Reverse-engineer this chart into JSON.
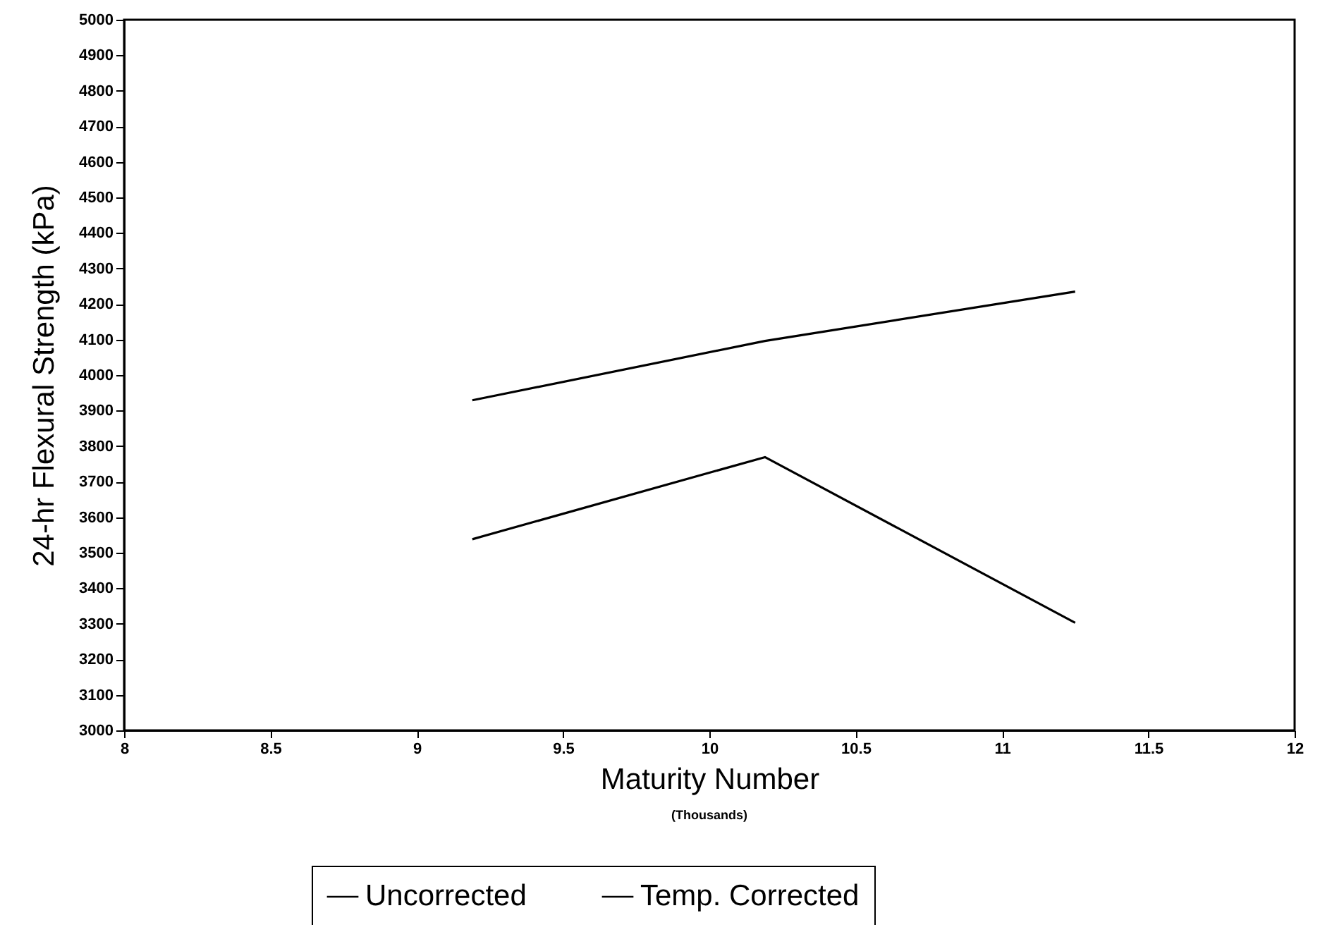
{
  "chart_data": {
    "type": "line",
    "xlabel": "Maturity Number",
    "ylabel": "24-hr Flexural Strength (kPa)",
    "annotations": [
      "(Thousands)"
    ],
    "xlim": [
      8,
      12
    ],
    "xticks": [
      8,
      8.5,
      9,
      9.5,
      10,
      10.5,
      11,
      11.5,
      12
    ],
    "ylim": [
      3000,
      5000
    ],
    "yticks": [
      3000,
      3100,
      3200,
      3300,
      3400,
      3500,
      3600,
      3700,
      3800,
      3900,
      4000,
      4100,
      4200,
      4300,
      4400,
      4500,
      4600,
      4700,
      4800,
      4900,
      5000
    ],
    "x": [
      9.19,
      10.19,
      11.25
    ],
    "series": [
      {
        "name": "Uncorrected",
        "color": "#000000",
        "values": [
          3538,
          3769,
          3303
        ]
      },
      {
        "name": "Temp. Corrected",
        "color": "#000000",
        "values": [
          3929,
          4096,
          4235
        ]
      }
    ],
    "grid": false,
    "legend": "bottom",
    "marker": "none",
    "line_style": "solid"
  }
}
